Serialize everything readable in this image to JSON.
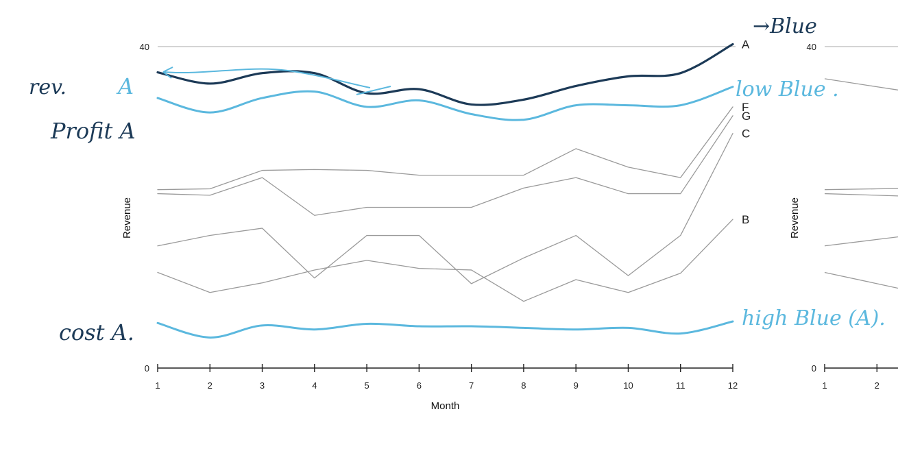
{
  "chart_data": [
    {
      "type": "line",
      "title": "",
      "xlabel": "Month",
      "ylabel": "Revenue",
      "x": [
        1,
        2,
        3,
        4,
        5,
        6,
        7,
        8,
        9,
        10,
        11,
        12
      ],
      "ylim": [
        0,
        40
      ],
      "yticks": [
        "0",
        "40"
      ],
      "grid": false,
      "series": [
        {
          "name": "A",
          "values": [
            36.8,
            35.4,
            36.7,
            36.7,
            34.2,
            34.7,
            32.8,
            33.4,
            35.1,
            36.3,
            36.7,
            40.3
          ]
        },
        {
          "name": "",
          "values": [
            33.6,
            31.8,
            33.6,
            34.4,
            32.5,
            33.3,
            31.6,
            30.9,
            32.7,
            32.7,
            32.7,
            35.0
          ]
        },
        {
          "name": "F",
          "values": [
            22.2,
            22.3,
            24.6,
            24.7,
            24.6,
            24.0,
            24.0,
            24.0,
            27.3,
            25.0,
            23.7,
            32.5
          ]
        },
        {
          "name": "G",
          "values": [
            21.7,
            21.5,
            23.7,
            19.0,
            20.0,
            20.0,
            20.0,
            22.4,
            23.7,
            21.7,
            21.7,
            31.4
          ]
        },
        {
          "name": "C",
          "values": [
            15.2,
            16.5,
            17.4,
            11.2,
            16.5,
            16.5,
            10.5,
            13.7,
            16.5,
            11.5,
            16.5,
            29.2
          ]
        },
        {
          "name": "B",
          "values": [
            11.9,
            9.4,
            10.6,
            12.2,
            13.4,
            12.4,
            12.2,
            8.3,
            11.0,
            9.4,
            11.8,
            18.5
          ]
        },
        {
          "name": "",
          "values": [
            5.6,
            3.8,
            5.3,
            4.8,
            5.5,
            5.2,
            5.2,
            5.0,
            4.8,
            5.0,
            4.3,
            5.8
          ]
        }
      ],
      "colors": {
        "A": "#1c3a57",
        "profit": "#5bb8de",
        "F": "#9a9a9a",
        "G": "#9a9a9a",
        "C": "#9a9a9a",
        "B": "#9a9a9a",
        "cost": "#5bb8de"
      }
    },
    {
      "type": "line",
      "title": "",
      "xlabel": "",
      "ylabel": "Revenue",
      "x": [
        1,
        2
      ],
      "ylim": [
        0,
        40
      ],
      "yticks": [
        "0",
        "40"
      ],
      "xticks_visible": [
        "1",
        "2"
      ],
      "grid": false,
      "series": [
        {
          "name": "",
          "values": [
            36.0,
            35.0
          ]
        },
        {
          "name": "",
          "values": [
            22.2,
            22.3
          ]
        },
        {
          "name": "",
          "values": [
            21.7,
            21.5
          ]
        },
        {
          "name": "",
          "values": [
            15.2,
            16.0
          ]
        },
        {
          "name": "",
          "values": [
            11.9,
            10.5
          ]
        }
      ]
    }
  ],
  "annotations": {
    "top_right": "→Blue",
    "rev": "rev.",
    "rev_a": "A",
    "profit": "Profit A",
    "low_blue": "low Blue .",
    "cost": "cost A.",
    "high_blue": "high Blue (A)."
  },
  "colors": {
    "dark_ink": "#1c3a57",
    "light_ink": "#5bb8de",
    "grey_line": "#9a9a9a"
  }
}
